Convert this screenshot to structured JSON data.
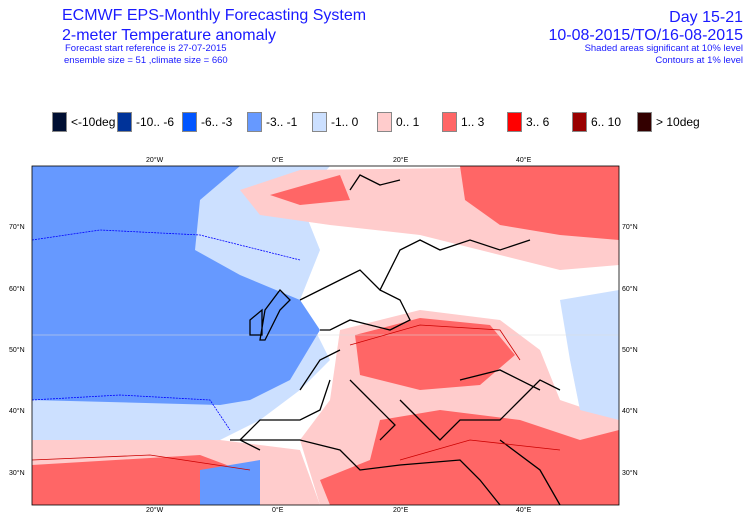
{
  "header": {
    "title": "ECMWF EPS-Monthly Forecasting System",
    "subtitle": "2-meter Temperature anomaly",
    "forecast_start": "Forecast start reference is 27-07-2015",
    "ensemble": "ensemble size = 51   ,climate size = 660",
    "day_range": "Day 15-21",
    "date_range": "10-08-2015/TO/16-08-2015",
    "shaded_note": "Shaded areas significant at 10% level",
    "contour_note": "Contours at 1% level"
  },
  "legend": [
    {
      "label": "<-10deg",
      "color": "#000f33"
    },
    {
      "label": "-10.. -6",
      "color": "#003399"
    },
    {
      "label": "-6.. -3",
      "color": "#0055ff"
    },
    {
      "label": "-3.. -1",
      "color": "#6699ff"
    },
    {
      "label": "-1..  0",
      "color": "#cce0ff"
    },
    {
      "label": "0..  1",
      "color": "#ffcccc"
    },
    {
      "label": "1..  3",
      "color": "#ff6666"
    },
    {
      "label": "3..  6",
      "color": "#ff0000"
    },
    {
      "label": "6..  10",
      "color": "#990000"
    },
    {
      "label": ">  10deg",
      "color": "#330000"
    }
  ],
  "axes": {
    "lon": [
      "20°W",
      "0°E",
      "20°E",
      "40°E"
    ],
    "lat": [
      "70°N",
      "60°N",
      "50°N",
      "40°N",
      "30°N"
    ]
  }
}
